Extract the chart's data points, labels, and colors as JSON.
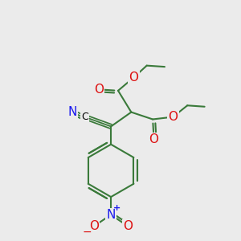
{
  "background_color": "#ebebeb",
  "bond_color": "#3a7a3a",
  "bond_width": 1.5,
  "atom_colors": {
    "C": "#000000",
    "N": "#1a1aee",
    "O": "#dd1111"
  },
  "figsize": [
    3.0,
    3.0
  ],
  "dpi": 100
}
